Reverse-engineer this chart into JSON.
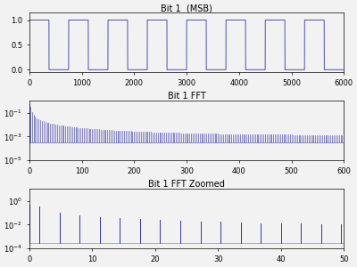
{
  "title1": "Bit 1  (MSB)",
  "title2": "Bit 1 FFT",
  "title3": "Bit 1 FFT Zoomed",
  "plot_color": "#3333AA",
  "background_color": "#F2F2F2",
  "msb_xlim": [
    0,
    6000
  ],
  "msb_ylim": [
    -0.05,
    1.15
  ],
  "msb_yticks": [
    0,
    0.5,
    1
  ],
  "fft_xlim": [
    0,
    600
  ],
  "fft_ylim": [
    1e-05,
    1.0
  ],
  "zoomed_xlim": [
    0,
    50
  ],
  "zoomed_ylim": [
    0.0001,
    10.0
  ],
  "N": 6000,
  "period": 750,
  "title_fontsize": 7,
  "tick_fontsize": 6
}
